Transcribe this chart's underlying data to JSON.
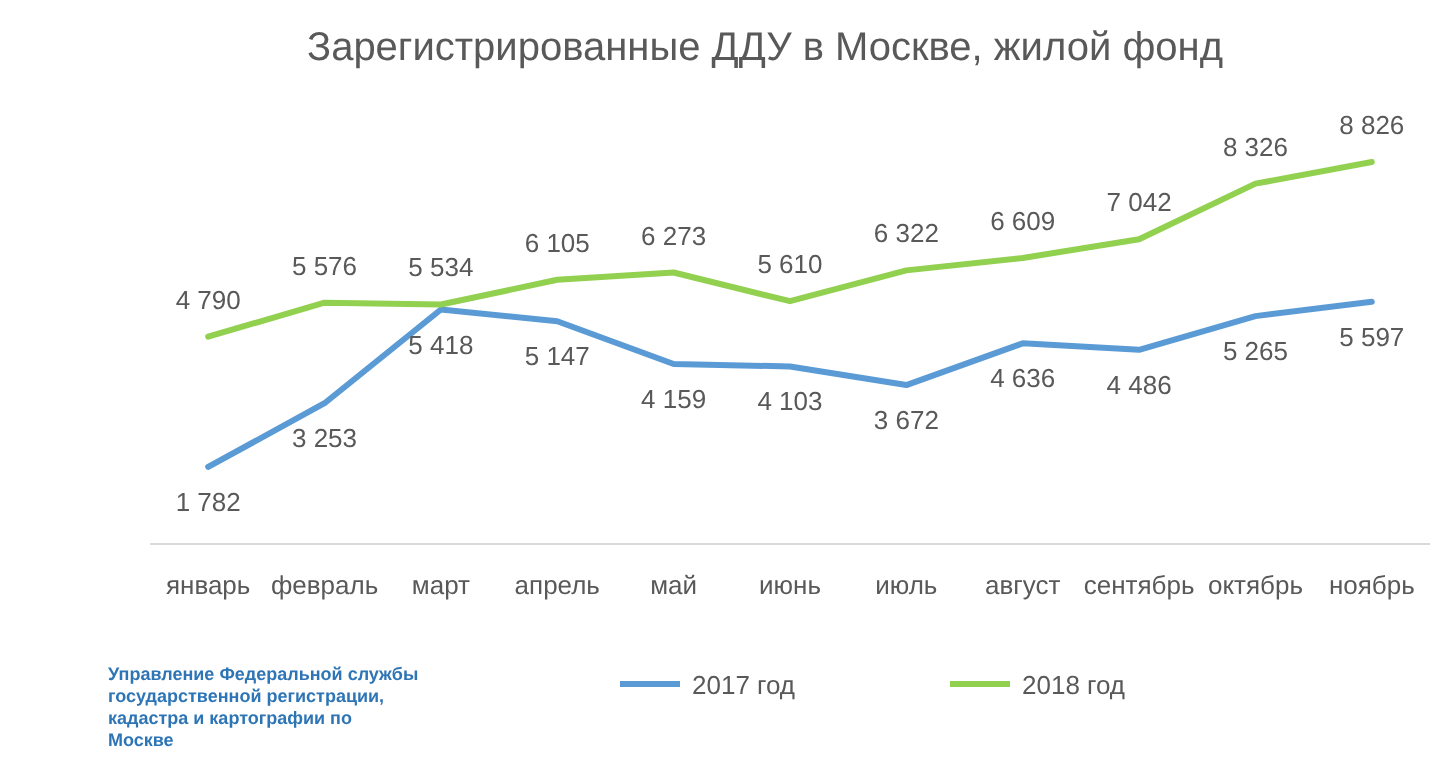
{
  "chart_data": {
    "type": "line",
    "title": "Зарегистрированные ДДУ в Москве, жилой фонд",
    "categories": [
      "январь",
      "февраль",
      "март",
      "апрель",
      "май",
      "июнь",
      "июль",
      "август",
      "сентябрь",
      "октябрь",
      "ноябрь"
    ],
    "series": [
      {
        "name": "2017 год",
        "color": "#5b9bd5",
        "values": [
          1782,
          3253,
          5418,
          5147,
          4159,
          4103,
          3672,
          4636,
          4486,
          5265,
          5597
        ]
      },
      {
        "name": "2018 год",
        "color": "#92d050",
        "values": [
          4790,
          5576,
          5534,
          6105,
          6273,
          5610,
          6322,
          6609,
          7042,
          8326,
          8826
        ]
      }
    ],
    "data_labels": true,
    "legend": "bottom",
    "grid": false,
    "marker": "none",
    "line_style": "solid",
    "annotations": [
      "Управление Федеральной службы государственной регистрации, кадастра и картографии по Москве"
    ]
  }
}
